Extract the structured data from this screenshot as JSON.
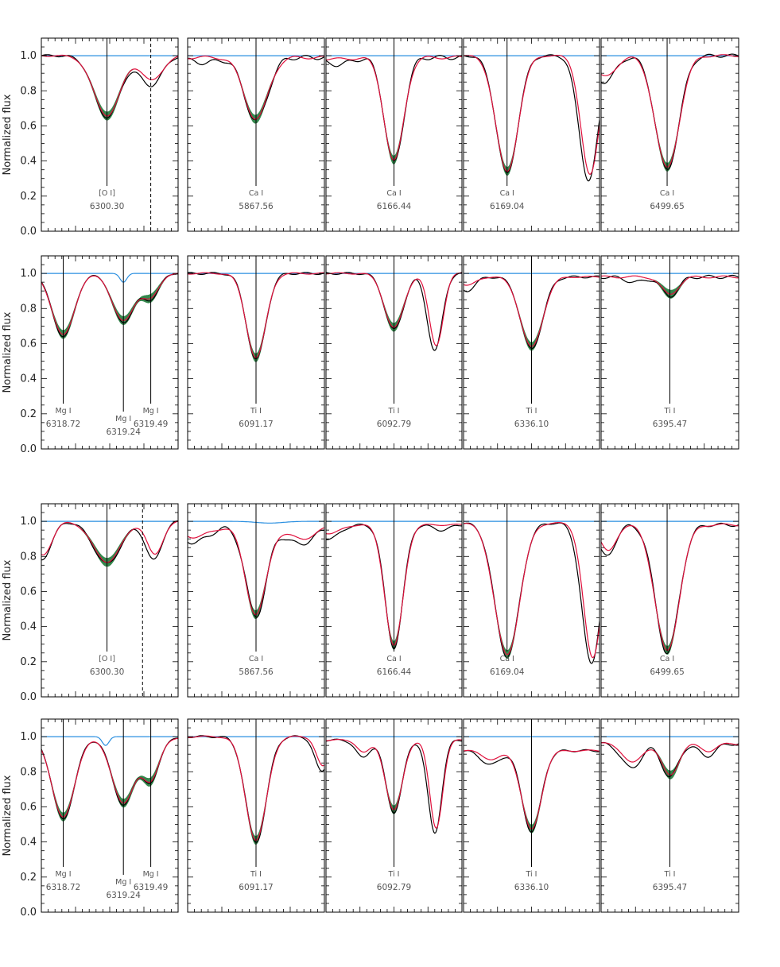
{
  "colors": {
    "observed": "#000000",
    "fit": "#e0103c",
    "band": "#1f7a3a",
    "telluric": "#2a8fe0",
    "frame": "#000000"
  },
  "chart_data": {
    "type": "line",
    "ylabel": "Normalized  flux",
    "ylim": [
      0.0,
      1.1
    ],
    "yticks": [
      "0.0",
      "0.2",
      "0.4",
      "0.6",
      "0.8",
      "1.0"
    ],
    "grids": [
      {
        "rows": [
          [
            {
              "baseline": 1.0,
              "lines": [
                {
                  "depth": 0.65,
                  "pos": 0.48,
                  "w": 0.095,
                  "label": "[O I]",
                  "wave": "6300.30",
                  "band": true
                }
              ],
              "extra": [
                {
                  "depth": 0.83,
                  "pos": 0.8,
                  "w": 0.08
                }
              ],
              "dashed": 0.8,
              "red_shift": 0.0,
              "telluric": [],
              "wiggle": 0.01
            },
            {
              "baseline": 0.99,
              "lines": [
                {
                  "depth": 0.63,
                  "pos": 0.5,
                  "w": 0.085,
                  "label": "Ca I",
                  "wave": "5867.56",
                  "band": true
                }
              ],
              "extra": [
                {
                  "depth": 0.96,
                  "pos": 0.12,
                  "w": 0.1
                }
              ],
              "dashed": null,
              "red_shift": 0.0,
              "telluric": [],
              "wiggle": 0.02
            },
            {
              "baseline": 0.99,
              "lines": [
                {
                  "depth": 0.39,
                  "pos": 0.5,
                  "w": 0.07,
                  "label": "Ca I",
                  "wave": "6166.44",
                  "band": true
                }
              ],
              "extra": [
                {
                  "depth": 0.95,
                  "pos": 0.08,
                  "w": 0.1
                }
              ],
              "dashed": null,
              "red_shift": 0.0,
              "telluric": [],
              "wiggle": 0.02
            },
            {
              "baseline": 1.0,
              "lines": [
                {
                  "depth": 0.33,
                  "pos": 0.32,
                  "w": 0.08,
                  "label": "Ca I",
                  "wave": "6169.04",
                  "band": true
                }
              ],
              "extra": [
                {
                  "depth": 0.29,
                  "pos": 0.92,
                  "w": 0.07
                }
              ],
              "dashed": null,
              "red_shift": 0.0,
              "telluric": [],
              "wiggle": 0.01
            },
            {
              "baseline": 1.0,
              "lines": [
                {
                  "depth": 0.35,
                  "pos": 0.48,
                  "w": 0.085,
                  "label": "Ca I",
                  "wave": "6499.65",
                  "band": true
                }
              ],
              "extra": [
                {
                  "depth": 0.85,
                  "pos": 0.02,
                  "w": 0.08
                }
              ],
              "dashed": null,
              "red_shift": 0.0,
              "telluric": [],
              "wiggle": 0.015
            }
          ],
          [
            {
              "baseline": 1.0,
              "lines": [
                {
                  "depth": 0.64,
                  "pos": 0.16,
                  "w": 0.08,
                  "label": "Mg I",
                  "wave": "6318.72",
                  "band": true
                },
                {
                  "depth": 0.72,
                  "pos": 0.6,
                  "w": 0.08,
                  "label": "Mg I",
                  "wave": "6319.24",
                  "band": true
                },
                {
                  "depth": 0.86,
                  "pos": 0.8,
                  "w": 0.06,
                  "label": "Mg I",
                  "wave": "6319.49",
                  "band": true
                }
              ],
              "extra": [],
              "dashed": null,
              "red_shift": 0.0,
              "telluric": [
                {
                  "pos": 0.6,
                  "depth": 0.05,
                  "w": 0.025
                }
              ],
              "wiggle": 0.005
            },
            {
              "baseline": 1.0,
              "lines": [
                {
                  "depth": 0.51,
                  "pos": 0.5,
                  "w": 0.07,
                  "label": "Ti I",
                  "wave": "6091.17",
                  "band": true
                }
              ],
              "extra": [],
              "dashed": null,
              "red_shift": 0.0,
              "telluric": [],
              "wiggle": 0.01
            },
            {
              "baseline": 1.0,
              "lines": [
                {
                  "depth": 0.68,
                  "pos": 0.5,
                  "w": 0.07,
                  "label": "Ti I",
                  "wave": "6092.79",
                  "band": true
                }
              ],
              "extra": [
                {
                  "depth": 0.56,
                  "pos": 0.8,
                  "w": 0.055
                }
              ],
              "dashed": null,
              "red_shift": 0.0,
              "telluric": [],
              "wiggle": 0.01
            },
            {
              "baseline": 0.98,
              "lines": [
                {
                  "depth": 0.57,
                  "pos": 0.5,
                  "w": 0.08,
                  "label": "Ti I",
                  "wave": "6336.10",
                  "band": true
                }
              ],
              "extra": [
                {
                  "depth": 0.9,
                  "pos": 0.02,
                  "w": 0.06
                }
              ],
              "dashed": null,
              "red_shift": 0.0,
              "telluric": [],
              "wiggle": 0.01
            },
            {
              "baseline": 0.98,
              "lines": [
                {
                  "depth": 0.87,
                  "pos": 0.5,
                  "w": 0.06,
                  "label": "Ti I",
                  "wave": "6395.47",
                  "band": true
                }
              ],
              "extra": [
                {
                  "depth": 0.95,
                  "pos": 0.25,
                  "w": 0.07
                }
              ],
              "dashed": null,
              "red_shift": 0.0,
              "telluric": [],
              "wiggle": 0.015
            }
          ]
        ]
      },
      {
        "rows": [
          [
            {
              "baseline": 1.0,
              "lines": [
                {
                  "depth": 0.76,
                  "pos": 0.48,
                  "w": 0.1,
                  "label": "[O I]",
                  "wave": "6300.30",
                  "band": true
                }
              ],
              "extra": [
                {
                  "depth": 0.78,
                  "pos": 0.82,
                  "w": 0.06
                },
                {
                  "depth": 0.78,
                  "pos": 0.0,
                  "w": 0.07
                }
              ],
              "dashed": 0.74,
              "red_shift": 0.0,
              "telluric": [],
              "wiggle": 0.01
            },
            {
              "baseline": 0.97,
              "lines": [
                {
                  "depth": 0.46,
                  "pos": 0.5,
                  "w": 0.075,
                  "label": "Ca I",
                  "wave": "5867.56",
                  "band": true
                }
              ],
              "extra": [
                {
                  "depth": 0.88,
                  "pos": 0.05,
                  "w": 0.1
                },
                {
                  "depth": 0.87,
                  "pos": 0.82,
                  "w": 0.1
                }
              ],
              "dashed": null,
              "red_shift": 0.0,
              "telluric": [
                {
                  "pos": 0.6,
                  "depth": 0.01,
                  "w": 0.1
                }
              ],
              "wiggle": 0.02
            },
            {
              "baseline": 0.98,
              "lines": [
                {
                  "depth": 0.28,
                  "pos": 0.5,
                  "w": 0.065,
                  "label": "Ca I",
                  "wave": "6166.44",
                  "band": true
                }
              ],
              "extra": [
                {
                  "depth": 0.9,
                  "pos": 0.02,
                  "w": 0.08
                },
                {
                  "depth": 0.95,
                  "pos": 0.85,
                  "w": 0.06
                }
              ],
              "dashed": null,
              "red_shift": 0.0,
              "telluric": [],
              "wiggle": 0.01
            },
            {
              "baseline": 0.99,
              "lines": [
                {
                  "depth": 0.23,
                  "pos": 0.32,
                  "w": 0.09,
                  "label": "Ca I",
                  "wave": "6169.04",
                  "band": true
                }
              ],
              "extra": [
                {
                  "depth": 0.19,
                  "pos": 0.94,
                  "w": 0.07
                }
              ],
              "dashed": null,
              "red_shift": 0.0,
              "telluric": [],
              "wiggle": 0.01
            },
            {
              "baseline": 0.98,
              "lines": [
                {
                  "depth": 0.25,
                  "pos": 0.48,
                  "w": 0.085,
                  "label": "Ca I",
                  "wave": "6499.65",
                  "band": true
                }
              ],
              "extra": [
                {
                  "depth": 0.8,
                  "pos": 0.04,
                  "w": 0.06
                }
              ],
              "dashed": null,
              "red_shift": 0.0,
              "telluric": [],
              "wiggle": 0.015
            }
          ],
          [
            {
              "baseline": 0.99,
              "lines": [
                {
                  "depth": 0.53,
                  "pos": 0.16,
                  "w": 0.08,
                  "label": "Mg I",
                  "wave": "6318.72",
                  "band": true
                },
                {
                  "depth": 0.61,
                  "pos": 0.6,
                  "w": 0.08,
                  "label": "Mg I",
                  "wave": "6319.24",
                  "band": true
                },
                {
                  "depth": 0.75,
                  "pos": 0.8,
                  "w": 0.06,
                  "label": "Mg I",
                  "wave": "6319.49",
                  "band": true
                }
              ],
              "extra": [],
              "dashed": null,
              "red_shift": 0.0,
              "telluric": [
                {
                  "pos": 0.47,
                  "depth": 0.05,
                  "w": 0.025
                }
              ],
              "wiggle": 0.005
            },
            {
              "baseline": 1.0,
              "lines": [
                {
                  "depth": 0.4,
                  "pos": 0.5,
                  "w": 0.075,
                  "label": "Ti I",
                  "wave": "6091.17",
                  "band": true
                }
              ],
              "extra": [
                {
                  "depth": 0.8,
                  "pos": 0.98,
                  "w": 0.05
                }
              ],
              "dashed": null,
              "red_shift": 0.0,
              "telluric": [],
              "wiggle": 0.01
            },
            {
              "baseline": 0.98,
              "lines": [
                {
                  "depth": 0.57,
                  "pos": 0.5,
                  "w": 0.06,
                  "label": "Ti I",
                  "wave": "6092.79",
                  "band": true
                }
              ],
              "extra": [
                {
                  "depth": 0.88,
                  "pos": 0.27,
                  "w": 0.05
                },
                {
                  "depth": 0.45,
                  "pos": 0.8,
                  "w": 0.05
                }
              ],
              "dashed": null,
              "red_shift": 0.0,
              "telluric": [],
              "wiggle": 0.01
            },
            {
              "baseline": 0.92,
              "lines": [
                {
                  "depth": 0.46,
                  "pos": 0.5,
                  "w": 0.07,
                  "label": "Ti I",
                  "wave": "6336.10",
                  "band": true
                }
              ],
              "extra": [
                {
                  "depth": 0.84,
                  "pos": 0.2,
                  "w": 0.07
                }
              ],
              "dashed": null,
              "red_shift": 0.0,
              "telluric": [],
              "wiggle": 0.01
            },
            {
              "baseline": 0.96,
              "lines": [
                {
                  "depth": 0.77,
                  "pos": 0.5,
                  "w": 0.06,
                  "label": "Ti I",
                  "wave": "6395.47",
                  "band": true
                }
              ],
              "extra": [
                {
                  "depth": 0.82,
                  "pos": 0.22,
                  "w": 0.07
                },
                {
                  "depth": 0.89,
                  "pos": 0.77,
                  "w": 0.06
                }
              ],
              "dashed": null,
              "red_shift": 0.0,
              "telluric": [],
              "wiggle": 0.015
            }
          ]
        ]
      }
    ]
  }
}
